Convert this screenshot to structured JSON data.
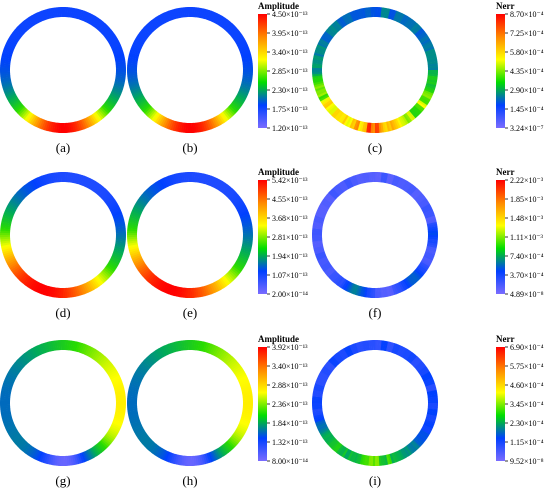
{
  "panels": [
    {
      "label": "(a)",
      "colorbar": null,
      "pattern": "amp-abc"
    },
    {
      "label": "(b)",
      "colorbar": null,
      "pattern": "amp-abc"
    },
    {
      "label": "(c)",
      "colorbar": "nerr1",
      "pattern": "err-c"
    },
    {
      "label": "(d)",
      "colorbar": null,
      "pattern": "amp-def"
    },
    {
      "label": "(e)",
      "colorbar": null,
      "pattern": "amp-def"
    },
    {
      "label": "(f)",
      "colorbar": "nerr2",
      "pattern": "err-f"
    },
    {
      "label": "(g)",
      "colorbar": null,
      "pattern": "amp-ghi"
    },
    {
      "label": "(h)",
      "colorbar": null,
      "pattern": "amp-ghi"
    },
    {
      "label": "(i)",
      "colorbar": "nerr3",
      "pattern": "err-i"
    }
  ],
  "colorbars": {
    "amp1": {
      "title": "Amplitude",
      "ticks": [
        "4.50×10⁻¹³",
        "3.95×10⁻¹³",
        "3.40×10⁻¹³",
        "2.85×10⁻¹³",
        "2.30×10⁻¹³",
        "1.75×10⁻¹³",
        "1.20×10⁻¹³"
      ]
    },
    "nerr1": {
      "title": "Nerr",
      "ticks": [
        "8.70×10⁻⁴",
        "7.25×10⁻⁴",
        "5.80×10⁻⁴",
        "4.35×10⁻⁴",
        "2.90×10⁻⁴",
        "1.45×10⁻⁴",
        "3.24×10⁻⁷"
      ]
    },
    "amp2": {
      "title": "Amplitude",
      "ticks": [
        "5.42×10⁻¹³",
        "4.55×10⁻¹³",
        "3.68×10⁻¹³",
        "2.81×10⁻¹³",
        "1.94×10⁻¹³",
        "1.07×10⁻¹³",
        "2.00×10⁻¹⁴"
      ]
    },
    "nerr2": {
      "title": "Nerr",
      "ticks": [
        "2.22×10⁻³",
        "1.85×10⁻³",
        "1.48×10⁻³",
        "1.11×10⁻³",
        "7.40×10⁻⁴",
        "3.70×10⁻⁴",
        "4.89×10⁻⁸"
      ]
    },
    "amp3": {
      "title": "Amplitude",
      "ticks": [
        "3.92×10⁻¹³",
        "3.40×10⁻¹³",
        "2.88×10⁻¹³",
        "2.36×10⁻¹³",
        "1.84×10⁻¹³",
        "1.32×10⁻¹³",
        "8.00×10⁻¹⁴"
      ]
    },
    "nerr3": {
      "title": "Nerr",
      "ticks": [
        "6.90×10⁻⁴",
        "5.75×10⁻⁴",
        "4.60×10⁻⁴",
        "3.45×10⁻⁴",
        "2.30×10⁻⁴",
        "1.15×10⁻⁴",
        "9.52×10⁻⁸"
      ]
    }
  },
  "amplitude_bars": [
    "amp1",
    "amp2",
    "amp3"
  ],
  "colors": {
    "gradient": [
      "#ff0000",
      "#ff8800",
      "#ffff00",
      "#00dd00",
      "#0055ff",
      "#7a6cff"
    ]
  }
}
